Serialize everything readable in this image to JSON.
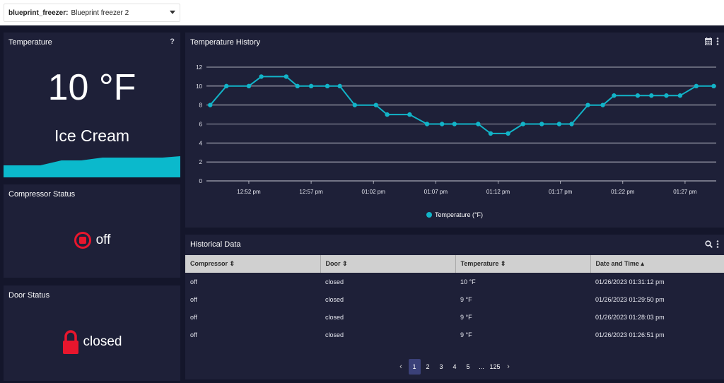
{
  "topbar": {
    "selector_label": "blueprint_freezer:",
    "selector_value": "Blueprint freezer 2"
  },
  "temperature_panel": {
    "title": "Temperature",
    "help": "?",
    "value": "10 °F",
    "product": "Ice Cream",
    "wave_color": "#0bb9cc"
  },
  "compressor_panel": {
    "title": "Compressor Status",
    "status": "off",
    "icon_color": "#e8162d"
  },
  "door_panel": {
    "title": "Door Status",
    "status": "closed",
    "icon_color": "#e8162d"
  },
  "history_panel": {
    "title": "Temperature History",
    "calendar_icon": "calendar-icon",
    "menu_icon": "more-vert-icon"
  },
  "chart_data": {
    "type": "line",
    "title": "Temperature History",
    "xlabel": "",
    "ylabel": "",
    "x_ticks": [
      "12:52 pm",
      "12:57 pm",
      "01:02 pm",
      "01:07 pm",
      "01:12 pm",
      "01:17 pm",
      "01:22 pm",
      "01:27 pm"
    ],
    "ylim": [
      0,
      12
    ],
    "y_ticks": [
      0,
      2,
      4,
      6,
      8,
      10,
      12
    ],
    "grid": true,
    "legend_position": "bottom-center",
    "series": [
      {
        "name": "Temperature (°F)",
        "color": "#12b4c8",
        "x_minutes": [
          48.9,
          50.2,
          52.0,
          53.0,
          55.0,
          55.9,
          57.0,
          58.3,
          59.3,
          60.5,
          62.2,
          63.1,
          64.9,
          66.3,
          67.5,
          68.5,
          70.4,
          71.4,
          72.8,
          74.0,
          75.5,
          76.9,
          77.9,
          79.2,
          80.4,
          81.3,
          83.2,
          84.3,
          85.5,
          86.6,
          87.9,
          89.3
        ],
        "values": [
          8,
          10,
          10,
          11,
          11,
          10,
          10,
          10,
          10,
          8,
          8,
          7,
          7,
          6,
          6,
          6,
          6,
          5,
          5,
          6,
          6,
          6,
          6,
          8,
          8,
          9,
          9,
          9,
          9,
          9,
          10,
          10
        ]
      }
    ]
  },
  "historical_panel": {
    "title": "Historical Data",
    "columns": [
      "Compressor",
      "Door",
      "Temperature",
      "Date and Time"
    ],
    "rows": [
      [
        "off",
        "closed",
        "10 °F",
        "01/26/2023 01:31:12 pm"
      ],
      [
        "off",
        "closed",
        "9 °F",
        "01/26/2023 01:29:50 pm"
      ],
      [
        "off",
        "closed",
        "9 °F",
        "01/26/2023 01:28:03 pm"
      ],
      [
        "off",
        "closed",
        "9 °F",
        "01/26/2023 01:26:51 pm"
      ]
    ],
    "pagination": {
      "prev": "‹",
      "pages": [
        "1",
        "2",
        "3",
        "4",
        "5"
      ],
      "ellipsis": "...",
      "last": "125",
      "next": "›",
      "current": "1"
    }
  }
}
